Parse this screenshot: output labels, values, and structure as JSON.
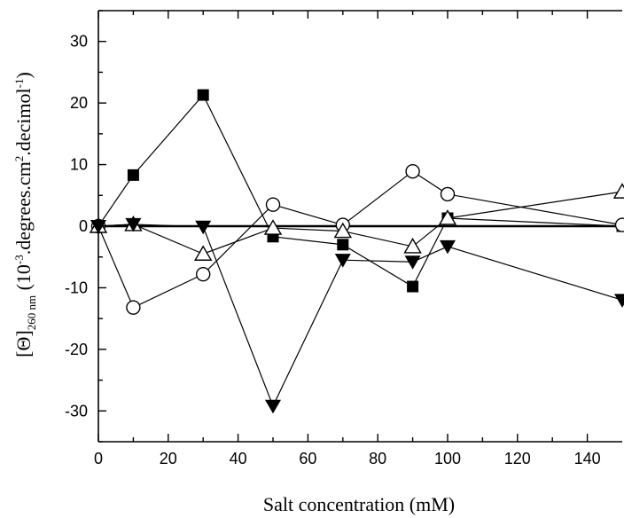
{
  "chart_data": {
    "type": "scatter",
    "xlabel": "Salt concentration (mM)",
    "ylabel_parts": {
      "base": "[Θ]",
      "subscript": "260 nm",
      "open": " (10",
      "sup1": "-3",
      "mid1": ".degrees.cm",
      "sup2": "2",
      "mid2": ".decimol",
      "sup3": "-1",
      "close": ")"
    },
    "xlim": [
      0,
      150
    ],
    "ylim": [
      -35,
      35
    ],
    "x_ticks": [
      0,
      20,
      40,
      60,
      80,
      100,
      120,
      140
    ],
    "y_ticks": [
      -30,
      -20,
      -10,
      0,
      10,
      20,
      30
    ],
    "x_tick_labels": [
      "0",
      "20",
      "40",
      "60",
      "80",
      "100",
      "120",
      "140"
    ],
    "y_tick_labels": [
      "-30",
      "-20",
      "-10",
      "0",
      "10",
      "20",
      "30"
    ],
    "zero_line": true,
    "grid": false,
    "series": [
      {
        "marker": "square-filled",
        "x": [
          0,
          10,
          30,
          50,
          70,
          90,
          100,
          150
        ],
        "y": [
          0,
          8.3,
          21.3,
          -1.7,
          -3.0,
          -9.8,
          1.3,
          0
        ]
      },
      {
        "marker": "circle-open",
        "x": [
          0,
          10,
          30,
          50,
          70,
          90,
          100,
          150
        ],
        "y": [
          0,
          -13.2,
          -7.8,
          3.5,
          0.2,
          8.9,
          5.2,
          0.2
        ]
      },
      {
        "marker": "triangle-up-open",
        "x": [
          0,
          10,
          30,
          50,
          70,
          90,
          100,
          150
        ],
        "y": [
          0,
          0.3,
          -4.5,
          -0.3,
          -0.8,
          -3.3,
          1.3,
          5.6
        ]
      },
      {
        "marker": "triangle-down-filled",
        "x": [
          0,
          10,
          30,
          50,
          70,
          90,
          100,
          150
        ],
        "y": [
          0,
          0.3,
          -0.1,
          -29.2,
          -5.5,
          -5.8,
          -3.3,
          -12.0
        ]
      }
    ]
  }
}
